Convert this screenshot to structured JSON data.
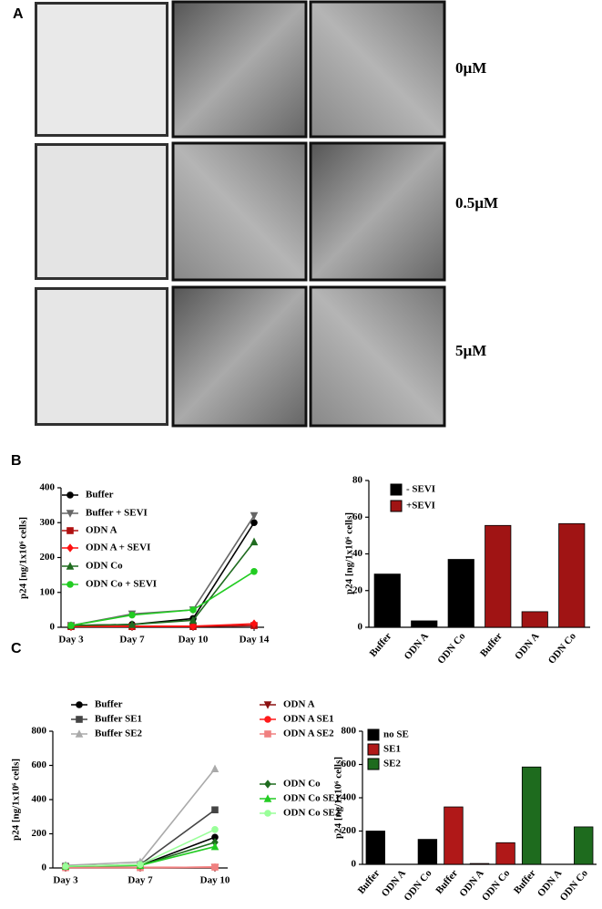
{
  "panels": [
    "A",
    "B",
    "C"
  ],
  "concentrations": [
    "0µM",
    "0.5µM",
    "5µM"
  ],
  "chart_data": [
    {
      "type": "line",
      "ylabel": "p24 [ng/1x10⁶ cells]",
      "categories": [
        "Day 3",
        "Day 7",
        "Day 10",
        "Day 14"
      ],
      "ylim": [
        0,
        400
      ],
      "yticks": [
        0,
        100,
        200,
        300,
        400
      ],
      "series": [
        {
          "name": "Buffer",
          "color": "#000000",
          "marker": "circle",
          "values": [
            5,
            8,
            25,
            300
          ]
        },
        {
          "name": "Buffer + SEVI",
          "color": "#666666",
          "marker": "triangle-down",
          "values": [
            5,
            38,
            50,
            320
          ]
        },
        {
          "name": "ODN A",
          "color": "#b01010",
          "marker": "square",
          "values": [
            2,
            2,
            2,
            5
          ]
        },
        {
          "name": "ODN A + SEVI",
          "color": "#ff1010",
          "marker": "diamond",
          "values": [
            2,
            3,
            3,
            10
          ]
        },
        {
          "name": "ODN Co",
          "color": "#1f6b1f",
          "marker": "triangle",
          "values": [
            5,
            8,
            20,
            245
          ]
        },
        {
          "name": "ODN Co + SEVI",
          "color": "#22cc22",
          "marker": "circle",
          "values": [
            5,
            35,
            50,
            160
          ]
        }
      ]
    },
    {
      "type": "bar",
      "ylabel": "p24 [ng/1x10⁶ cells]",
      "categories": [
        "Buffer",
        "ODN A",
        "ODN Co",
        "Buffer",
        "ODN A",
        "ODN Co"
      ],
      "ylim": [
        0,
        80
      ],
      "yticks": [
        0,
        20,
        40,
        60,
        80
      ],
      "series": [
        {
          "name": "- SEVI",
          "color": "#000000",
          "values": [
            29,
            3.5,
            37,
            null,
            null,
            null
          ]
        },
        {
          "name": "+SEVI",
          "color": "#a01414",
          "values": [
            null,
            null,
            null,
            55.5,
            8.5,
            56.5
          ]
        }
      ]
    },
    {
      "type": "line",
      "ylabel": "p24 [ng/1x10⁶ cells]",
      "categories": [
        "Day 3",
        "Day 7",
        "Day 10"
      ],
      "ylim": [
        0,
        800
      ],
      "yticks": [
        0,
        200,
        400,
        600,
        800
      ],
      "series": [
        {
          "name": "Buffer",
          "color": "#000000",
          "marker": "circle",
          "values": [
            10,
            15,
            180
          ]
        },
        {
          "name": "Buffer SE1",
          "color": "#444444",
          "marker": "square",
          "values": [
            10,
            20,
            340
          ]
        },
        {
          "name": "Buffer SE2",
          "color": "#aaaaaa",
          "marker": "triangle",
          "values": [
            15,
            35,
            580
          ]
        },
        {
          "name": "ODN A",
          "color": "#8b1010",
          "marker": "triangle-down",
          "values": [
            2,
            2,
            3
          ]
        },
        {
          "name": "ODN A SE1",
          "color": "#ff1a1a",
          "marker": "circle",
          "values": [
            2,
            2,
            5
          ]
        },
        {
          "name": "ODN A SE2",
          "color": "#f08080",
          "marker": "square",
          "values": [
            2,
            2,
            5
          ]
        },
        {
          "name": "ODN Co",
          "color": "#1f6b1f",
          "marker": "diamond",
          "values": [
            10,
            15,
            150
          ]
        },
        {
          "name": "ODN Co SE1",
          "color": "#22cc22",
          "marker": "triangle",
          "values": [
            10,
            15,
            125
          ]
        },
        {
          "name": "ODN Co SE2",
          "color": "#99ff99",
          "marker": "circle",
          "values": [
            10,
            20,
            225
          ]
        }
      ]
    },
    {
      "type": "bar",
      "ylabel": "p24 [ng/1x10⁶ cells]",
      "categories": [
        "Buffer",
        "ODN A",
        "ODN Co",
        "Buffer",
        "ODN A",
        "ODN Co",
        "Buffer",
        "ODN A",
        "ODN Co"
      ],
      "ylim": [
        0,
        800
      ],
      "yticks": [
        0,
        200,
        400,
        600,
        800
      ],
      "series": [
        {
          "name": "no SE",
          "color": "#000000",
          "values": [
            200,
            0,
            150,
            null,
            null,
            null,
            null,
            null,
            null
          ]
        },
        {
          "name": "SE1",
          "color": "#b01818",
          "values": [
            null,
            null,
            null,
            345,
            5,
            130,
            null,
            null,
            null
          ]
        },
        {
          "name": "SE2",
          "color": "#1e6b1e",
          "values": [
            null,
            null,
            null,
            null,
            null,
            null,
            585,
            0,
            225
          ]
        }
      ]
    }
  ]
}
